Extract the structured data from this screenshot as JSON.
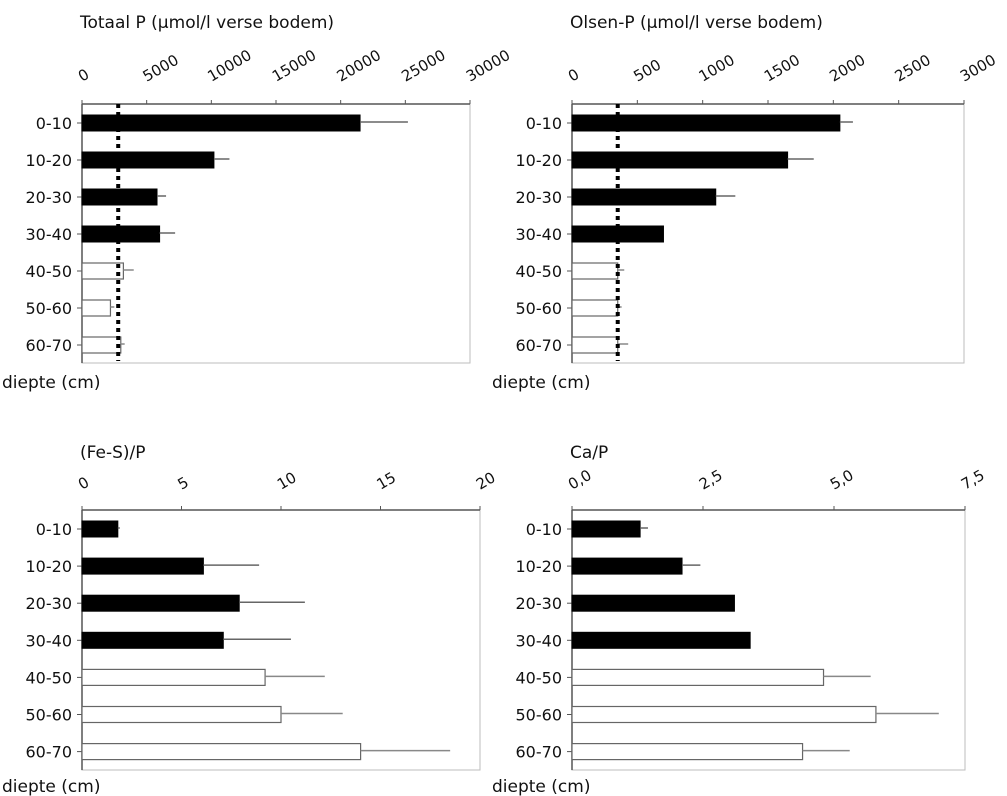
{
  "chart_data": [
    {
      "type": "bar",
      "orientation": "horizontal",
      "title": "Totaal P (µmol/l verse bodem)",
      "ylabel": "diepte (cm)",
      "categories": [
        "0-10",
        "10-20",
        "20-30",
        "30-40",
        "40-50",
        "50-60",
        "60-70"
      ],
      "ticks": [
        "0",
        "5000",
        "10000",
        "15000",
        "20000",
        "25000",
        "30000"
      ],
      "xlim": [
        0,
        30000
      ],
      "values": [
        21500,
        10200,
        5800,
        6000,
        3200,
        2200,
        3000
      ],
      "errors": [
        3700,
        1200,
        700,
        1200,
        800,
        300,
        300
      ],
      "filled": [
        true,
        true,
        true,
        true,
        false,
        false,
        false
      ],
      "reference_line": 2800
    },
    {
      "type": "bar",
      "orientation": "horizontal",
      "title": "Olsen-P (µmol/l verse bodem)",
      "ylabel": "diepte (cm)",
      "categories": [
        "0-10",
        "10-20",
        "20-30",
        "30-40",
        "40-50",
        "50-60",
        "60-70"
      ],
      "ticks": [
        "0",
        "500",
        "1000",
        "1500",
        "2000",
        "2500",
        "3000"
      ],
      "xlim": [
        0,
        3000
      ],
      "values": [
        2050,
        1650,
        1100,
        700,
        350,
        350,
        350
      ],
      "errors": [
        100,
        200,
        150,
        0,
        50,
        30,
        80
      ],
      "filled": [
        true,
        true,
        true,
        true,
        false,
        false,
        false
      ],
      "reference_line": 350
    },
    {
      "type": "bar",
      "orientation": "horizontal",
      "title": "(Fe-S)/P",
      "ylabel": "diepte (cm)",
      "categories": [
        "0-10",
        "10-20",
        "20-30",
        "30-40",
        "40-50",
        "50-60",
        "60-70"
      ],
      "ticks": [
        "0",
        "5",
        "10",
        "15",
        "20"
      ],
      "xlim": [
        0,
        20
      ],
      "values": [
        1.8,
        6.1,
        7.9,
        7.1,
        9.2,
        10.0,
        14.0
      ],
      "errors": [
        0.1,
        2.8,
        3.3,
        3.4,
        3.0,
        3.1,
        4.5
      ],
      "filled": [
        true,
        true,
        true,
        true,
        false,
        false,
        false
      ]
    },
    {
      "type": "bar",
      "orientation": "horizontal",
      "title": "Ca/P",
      "ylabel": "diepte (cm)",
      "categories": [
        "0-10",
        "10-20",
        "20-30",
        "30-40",
        "40-50",
        "50-60",
        "60-70"
      ],
      "ticks": [
        "0,0",
        "2,5",
        "5,0",
        "7,5"
      ],
      "xlim": [
        0,
        7.5
      ],
      "values": [
        1.3,
        2.1,
        3.1,
        3.4,
        4.8,
        5.8,
        4.4
      ],
      "errors": [
        0.15,
        0.35,
        0,
        0,
        0.9,
        1.2,
        0.9
      ],
      "filled": [
        true,
        true,
        true,
        true,
        false,
        false,
        false
      ]
    }
  ]
}
